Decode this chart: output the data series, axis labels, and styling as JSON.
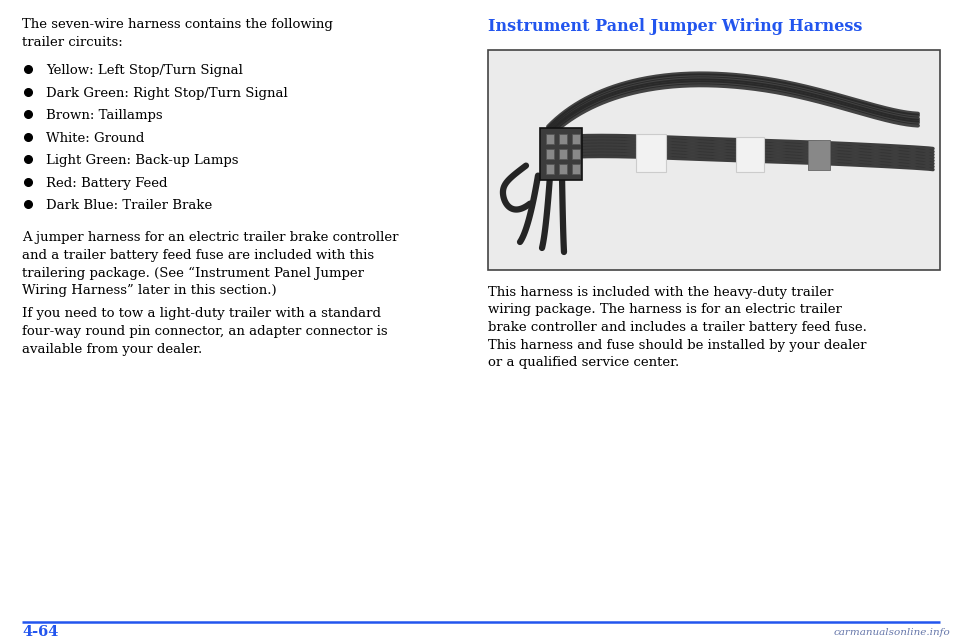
{
  "bg_color": "#ffffff",
  "page_number": "4-64",
  "page_number_color": "#2255ee",
  "line_color": "#2255ee",
  "heading_color": "#2255ee",
  "body_text_color": "#000000",
  "heading": "Instrument Panel Jumper Wiring Harness",
  "intro_text": "The seven-wire harness contains the following\ntrailer circuits:",
  "bullet_items": [
    "Yellow: Left Stop/Turn Signal",
    "Dark Green: Right Stop/Turn Signal",
    "Brown: Taillamps",
    "White: Ground",
    "Light Green: Back-up Lamps",
    "Red: Battery Feed",
    "Dark Blue: Trailer Brake"
  ],
  "paragraph1": "A jumper harness for an electric trailer brake controller\nand a trailer battery feed fuse are included with this\ntrailering package. (See “Instrument Panel Jumper\nWiring Harness” later in this section.)",
  "paragraph2": "If you need to tow a light-duty trailer with a standard\nfour-way round pin connector, an adapter connector is\navailable from your dealer.",
  "right_paragraph": "This harness is included with the heavy-duty trailer\nwiring package. The harness is for an electric trailer\nbrake controller and includes a trailer battery feed fuse.\nThis harness and fuse should be installed by your dealer\nor a qualified service center.",
  "watermark": "carmanualsonline.info",
  "font_size_body": 9.5,
  "font_size_heading": 11.5,
  "font_size_page": 10.5,
  "img_bg": "#e8e8e8",
  "img_border": "#444444",
  "cable_dark": "#2a2a2a",
  "cable_mid": "#555555",
  "tape_white": "#f2f2f2",
  "connector_color": "#444444"
}
